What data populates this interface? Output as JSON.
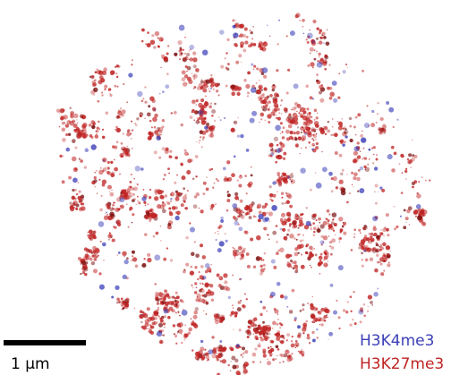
{
  "scale_bar": {
    "label": "1 μm"
  },
  "legend": {
    "items": [
      {
        "label": "H3K4me3",
        "color": "#3b3fb8"
      },
      {
        "label": "H3K27me3",
        "color": "#c02424"
      }
    ]
  }
}
